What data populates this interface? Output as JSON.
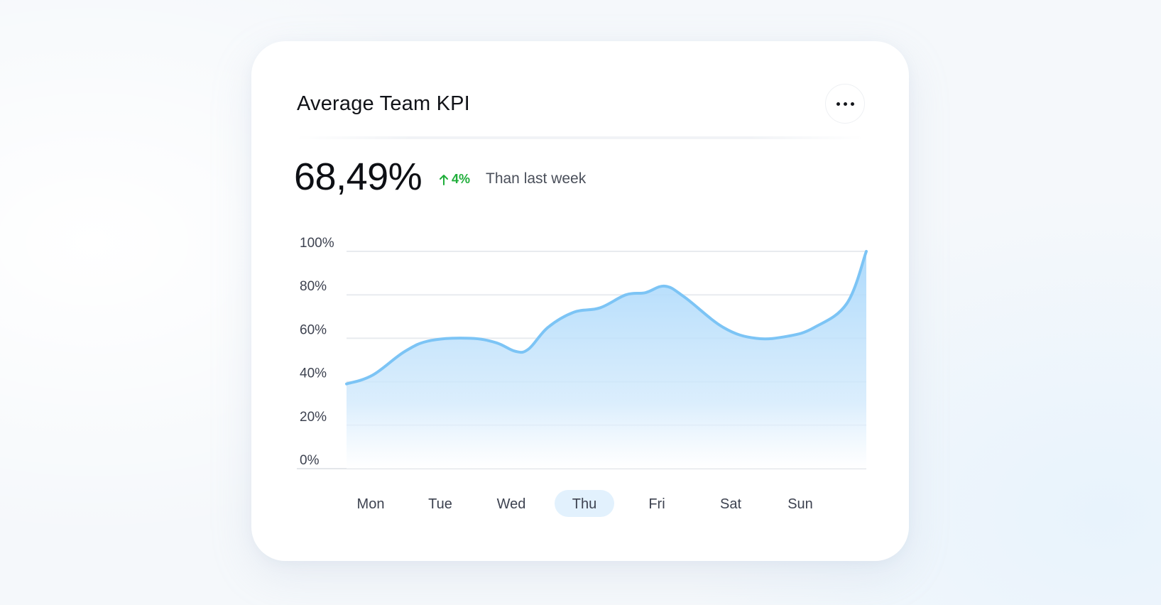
{
  "card": {
    "title": "Average Team KPI",
    "more_icon": "more-horizontal-icon"
  },
  "kpi": {
    "value": "68,49%",
    "delta": "4%",
    "delta_icon": "arrow-up-icon",
    "compare_text": "Than last week"
  },
  "colors": {
    "line": "#7cc4f5",
    "area_top": "#a9d8fb",
    "positive": "#1fae3a",
    "selected_day_bg": "#e2f1fd"
  },
  "chart_data": {
    "type": "area",
    "categories": [
      "Mon",
      "Tue",
      "Wed",
      "Thu",
      "Fri",
      "Sat",
      "Sun"
    ],
    "selected_category": "Thu",
    "y_ticks": [
      "100%",
      "80%",
      "60%",
      "40%",
      "20%",
      "0%"
    ],
    "y_tick_values": [
      100,
      80,
      60,
      40,
      20,
      0
    ],
    "ylim": [
      0,
      100
    ],
    "series": [
      {
        "points": [
          {
            "x": 0.0,
            "y": 39
          },
          {
            "x": 0.4,
            "y": 43
          },
          {
            "x": 0.9,
            "y": 54
          },
          {
            "x": 1.3,
            "y": 59
          },
          {
            "x": 1.9,
            "y": 60
          },
          {
            "x": 2.3,
            "y": 58
          },
          {
            "x": 2.6,
            "y": 54
          },
          {
            "x": 2.8,
            "y": 55
          },
          {
            "x": 3.1,
            "y": 65
          },
          {
            "x": 3.5,
            "y": 72
          },
          {
            "x": 3.9,
            "y": 74
          },
          {
            "x": 4.3,
            "y": 80
          },
          {
            "x": 4.6,
            "y": 81
          },
          {
            "x": 4.9,
            "y": 84
          },
          {
            "x": 5.2,
            "y": 79
          },
          {
            "x": 5.8,
            "y": 65
          },
          {
            "x": 6.3,
            "y": 60
          },
          {
            "x": 6.8,
            "y": 61
          },
          {
            "x": 7.2,
            "y": 65
          },
          {
            "x": 7.7,
            "y": 76
          },
          {
            "x": 8.0,
            "y": 100
          }
        ]
      }
    ],
    "x_range": [
      0,
      8
    ],
    "grid": true,
    "legend": "none"
  }
}
